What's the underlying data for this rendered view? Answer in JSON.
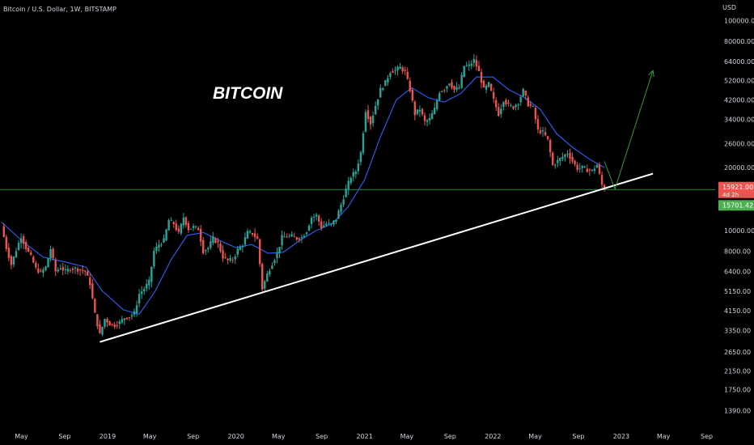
{
  "header": {
    "symbol_text": "Bitcoin / U.S. Dollar, 1W, BITSTAMP"
  },
  "annotation": {
    "text": "BITCOIN"
  },
  "price_scale": {
    "currency": "USD",
    "ticks": [
      "100000.00",
      "80000.00",
      "64000.00",
      "52000.00",
      "42000.00",
      "34000.00",
      "26000.00",
      "20000.00",
      "10000.00",
      "8000.00",
      "6400.00",
      "5150.00",
      "4150.00",
      "3350.00",
      "2650.00",
      "2150.00",
      "1750.00",
      "1390.00"
    ],
    "last_price_label": "15921.00",
    "countdown_label": "4d 2h",
    "level_label": "15701.42"
  },
  "time_axis": {
    "ticks": [
      "May",
      "Sep",
      "2019",
      "May",
      "Sep",
      "2020",
      "May",
      "Sep",
      "2021",
      "May",
      "Sep",
      "2022",
      "May",
      "Sep",
      "2023",
      "May",
      "Sep"
    ]
  },
  "colors": {
    "background": "#000000",
    "up": "#26a69a",
    "down": "#ef5350",
    "ma": "#2962ff",
    "trendline": "#ffffff",
    "horizontal_level": "#1e7d32",
    "projection": "#2e9a37",
    "last_price_tag": "#ef5350",
    "level_tag": "#4caf50"
  },
  "chart_data": {
    "type": "candlestick",
    "scale": "log",
    "ylim": [
      1300,
      115000
    ],
    "x_range": [
      "2018-03-01",
      "2023-09-25"
    ],
    "interval": "1W",
    "series": [
      {
        "name": "",
        "kind": "weekly closes",
        "points": [
          [
            "2018-03-05",
            10500
          ],
          [
            "2018-03-19",
            8300
          ],
          [
            "2018-04-02",
            6900
          ],
          [
            "2018-04-16",
            8100
          ],
          [
            "2018-04-30",
            9400
          ],
          [
            "2018-05-14",
            8300
          ],
          [
            "2018-05-28",
            7500
          ],
          [
            "2018-06-11",
            6600
          ],
          [
            "2018-06-25",
            6300
          ],
          [
            "2018-07-09",
            6700
          ],
          [
            "2018-07-23",
            8200
          ],
          [
            "2018-08-06",
            6400
          ],
          [
            "2018-08-20",
            6700
          ],
          [
            "2018-09-03",
            6400
          ],
          [
            "2018-09-17",
            6600
          ],
          [
            "2018-10-01",
            6600
          ],
          [
            "2018-10-15",
            6500
          ],
          [
            "2018-10-29",
            6400
          ],
          [
            "2018-11-12",
            5600
          ],
          [
            "2018-11-26",
            4000
          ],
          [
            "2018-12-10",
            3200
          ],
          [
            "2018-12-24",
            3800
          ],
          [
            "2019-01-07",
            3600
          ],
          [
            "2019-01-21",
            3550
          ],
          [
            "2019-02-04",
            3650
          ],
          [
            "2019-02-18",
            3850
          ],
          [
            "2019-03-04",
            3900
          ],
          [
            "2019-03-18",
            4050
          ],
          [
            "2019-04-01",
            5000
          ],
          [
            "2019-04-15",
            5300
          ],
          [
            "2019-04-29",
            5700
          ],
          [
            "2019-05-13",
            8000
          ],
          [
            "2019-05-27",
            8600
          ],
          [
            "2019-06-10",
            9000
          ],
          [
            "2019-06-24",
            11200
          ],
          [
            "2019-07-08",
            10800
          ],
          [
            "2019-07-22",
            9700
          ],
          [
            "2019-08-05",
            11600
          ],
          [
            "2019-08-19",
            10200
          ],
          [
            "2019-09-02",
            10400
          ],
          [
            "2019-09-16",
            10200
          ],
          [
            "2019-09-30",
            8000
          ],
          [
            "2019-10-14",
            8300
          ],
          [
            "2019-10-28",
            9200
          ],
          [
            "2019-11-11",
            8700
          ],
          [
            "2019-11-25",
            7500
          ],
          [
            "2019-12-09",
            7200
          ],
          [
            "2019-12-23",
            7300
          ],
          [
            "2020-01-06",
            8100
          ],
          [
            "2020-01-20",
            8600
          ],
          [
            "2020-02-03",
            9800
          ],
          [
            "2020-02-17",
            9700
          ],
          [
            "2020-03-02",
            9100
          ],
          [
            "2020-03-16",
            5300
          ],
          [
            "2020-03-30",
            6200
          ],
          [
            "2020-04-13",
            7000
          ],
          [
            "2020-04-27",
            7800
          ],
          [
            "2020-05-11",
            9300
          ],
          [
            "2020-05-25",
            9400
          ],
          [
            "2020-06-08",
            9400
          ],
          [
            "2020-06-22",
            9200
          ],
          [
            "2020-07-06",
            9300
          ],
          [
            "2020-07-20",
            10000
          ],
          [
            "2020-08-03",
            11600
          ],
          [
            "2020-08-17",
            11800
          ],
          [
            "2020-08-31",
            10400
          ],
          [
            "2020-09-14",
            10800
          ],
          [
            "2020-09-28",
            10700
          ],
          [
            "2020-10-12",
            11400
          ],
          [
            "2020-10-26",
            13300
          ],
          [
            "2020-11-09",
            15700
          ],
          [
            "2020-11-23",
            18100
          ],
          [
            "2020-12-07",
            19200
          ],
          [
            "2020-12-21",
            23500
          ],
          [
            "2021-01-04",
            37500
          ],
          [
            "2021-01-18",
            32500
          ],
          [
            "2021-02-01",
            39500
          ],
          [
            "2021-02-15",
            47000
          ],
          [
            "2021-03-01",
            50900
          ],
          [
            "2021-03-15",
            57500
          ],
          [
            "2021-03-29",
            58000
          ],
          [
            "2021-04-12",
            60000
          ],
          [
            "2021-04-26",
            57000
          ],
          [
            "2021-05-10",
            47000
          ],
          [
            "2021-05-24",
            36000
          ],
          [
            "2021-06-07",
            38000
          ],
          [
            "2021-06-21",
            33000
          ],
          [
            "2021-07-05",
            34000
          ],
          [
            "2021-07-19",
            38000
          ],
          [
            "2021-08-02",
            46000
          ],
          [
            "2021-08-16",
            47500
          ],
          [
            "2021-08-30",
            51000
          ],
          [
            "2021-09-13",
            47000
          ],
          [
            "2021-09-27",
            48000
          ],
          [
            "2021-10-11",
            61000
          ],
          [
            "2021-10-25",
            61000
          ],
          [
            "2021-11-08",
            65000
          ],
          [
            "2021-11-22",
            57000
          ],
          [
            "2021-12-06",
            47000
          ],
          [
            "2021-12-20",
            50000
          ],
          [
            "2022-01-03",
            41900
          ],
          [
            "2022-01-17",
            36000
          ],
          [
            "2022-01-31",
            42000
          ],
          [
            "2022-02-14",
            39500
          ],
          [
            "2022-02-28",
            38800
          ],
          [
            "2022-03-14",
            41000
          ],
          [
            "2022-03-28",
            46500
          ],
          [
            "2022-04-11",
            40000
          ],
          [
            "2022-04-25",
            38500
          ],
          [
            "2022-05-09",
            30000
          ],
          [
            "2022-05-23",
            29500
          ],
          [
            "2022-06-06",
            27000
          ],
          [
            "2022-06-20",
            20500
          ],
          [
            "2022-07-04",
            21500
          ],
          [
            "2022-07-18",
            22500
          ],
          [
            "2022-08-01",
            23500
          ],
          [
            "2022-08-15",
            21500
          ],
          [
            "2022-08-29",
            19800
          ],
          [
            "2022-09-12",
            20000
          ],
          [
            "2022-09-26",
            19500
          ],
          [
            "2022-10-10",
            19300
          ],
          [
            "2022-10-24",
            20600
          ],
          [
            "2022-11-07",
            16500
          ],
          [
            "2022-11-14",
            15921
          ]
        ]
      }
    ],
    "moving_average": {
      "points": [
        [
          "2018-03-05",
          11000
        ],
        [
          "2018-05-01",
          9000
        ],
        [
          "2018-07-01",
          7500
        ],
        [
          "2018-09-01",
          7100
        ],
        [
          "2018-11-01",
          6700
        ],
        [
          "2018-12-15",
          5200
        ],
        [
          "2019-02-15",
          4200
        ],
        [
          "2019-04-01",
          4000
        ],
        [
          "2019-05-15",
          5100
        ],
        [
          "2019-07-01",
          7300
        ],
        [
          "2019-08-15",
          9500
        ],
        [
          "2019-10-01",
          9800
        ],
        [
          "2019-11-15",
          9000
        ],
        [
          "2020-01-01",
          8300
        ],
        [
          "2020-02-15",
          8600
        ],
        [
          "2020-04-01",
          7800
        ],
        [
          "2020-05-15",
          7900
        ],
        [
          "2020-07-01",
          9000
        ],
        [
          "2020-08-15",
          10000
        ],
        [
          "2020-10-01",
          10800
        ],
        [
          "2020-11-15",
          13000
        ],
        [
          "2021-01-01",
          17500
        ],
        [
          "2021-02-15",
          28000
        ],
        [
          "2021-04-01",
          42000
        ],
        [
          "2021-05-15",
          48000
        ],
        [
          "2021-07-01",
          43000
        ],
        [
          "2021-08-15",
          41000
        ],
        [
          "2021-10-01",
          45000
        ],
        [
          "2021-11-15",
          54000
        ],
        [
          "2022-01-01",
          54000
        ],
        [
          "2022-02-15",
          47000
        ],
        [
          "2022-04-01",
          43000
        ],
        [
          "2022-05-15",
          38000
        ],
        [
          "2022-07-01",
          29000
        ],
        [
          "2022-08-15",
          25000
        ],
        [
          "2022-10-01",
          22000
        ],
        [
          "2022-11-14",
          20000
        ]
      ]
    },
    "trendline": {
      "from": [
        "2018-12-10",
        2950
      ],
      "to": [
        "2023-04-01",
        18700
      ]
    },
    "horizontal_level": 15701.42,
    "projection": {
      "from": [
        "2022-11-14",
        21400
      ],
      "via": [
        "2022-12-14",
        15800
      ],
      "to": [
        "2023-04-01",
        58000
      ]
    },
    "last_price": 15921.0,
    "grid": false
  }
}
